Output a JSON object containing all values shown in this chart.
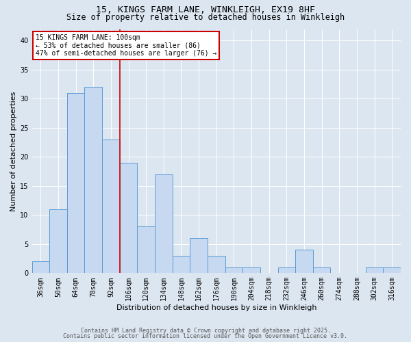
{
  "title1": "15, KINGS FARM LANE, WINKLEIGH, EX19 8HF",
  "title2": "Size of property relative to detached houses in Winkleigh",
  "xlabel": "Distribution of detached houses by size in Winkleigh",
  "ylabel": "Number of detached properties",
  "categories": [
    "36sqm",
    "50sqm",
    "64sqm",
    "78sqm",
    "92sqm",
    "106sqm",
    "120sqm",
    "134sqm",
    "148sqm",
    "162sqm",
    "176sqm",
    "190sqm",
    "204sqm",
    "218sqm",
    "232sqm",
    "246sqm",
    "260sqm",
    "274sqm",
    "288sqm",
    "302sqm",
    "316sqm"
  ],
  "values": [
    2,
    11,
    31,
    32,
    23,
    19,
    8,
    17,
    3,
    6,
    3,
    1,
    1,
    0,
    1,
    4,
    1,
    0,
    0,
    1,
    1
  ],
  "bar_color": "#c6d9f1",
  "bar_edge_color": "#5b9bd5",
  "annotation_text_line1": "15 KINGS FARM LANE: 100sqm",
  "annotation_text_line2": "← 53% of detached houses are smaller (86)",
  "annotation_text_line3": "47% of semi-detached houses are larger (76) →",
  "annotation_box_color": "#ffffff",
  "annotation_box_edge_color": "#cc0000",
  "red_line_color": "#cc0000",
  "red_line_x": 4.5,
  "ylim": [
    0,
    42
  ],
  "yticks": [
    0,
    5,
    10,
    15,
    20,
    25,
    30,
    35,
    40
  ],
  "footer1": "Contains HM Land Registry data © Crown copyright and database right 2025.",
  "footer2": "Contains public sector information licensed under the Open Government Licence v3.0.",
  "bg_color": "#dce6f1",
  "plot_bg_color": "#dce6f1",
  "title1_fontsize": 9.5,
  "title2_fontsize": 8.5,
  "tick_fontsize": 7,
  "axis_label_fontsize": 8,
  "annotation_fontsize": 7,
  "footer_fontsize": 6
}
